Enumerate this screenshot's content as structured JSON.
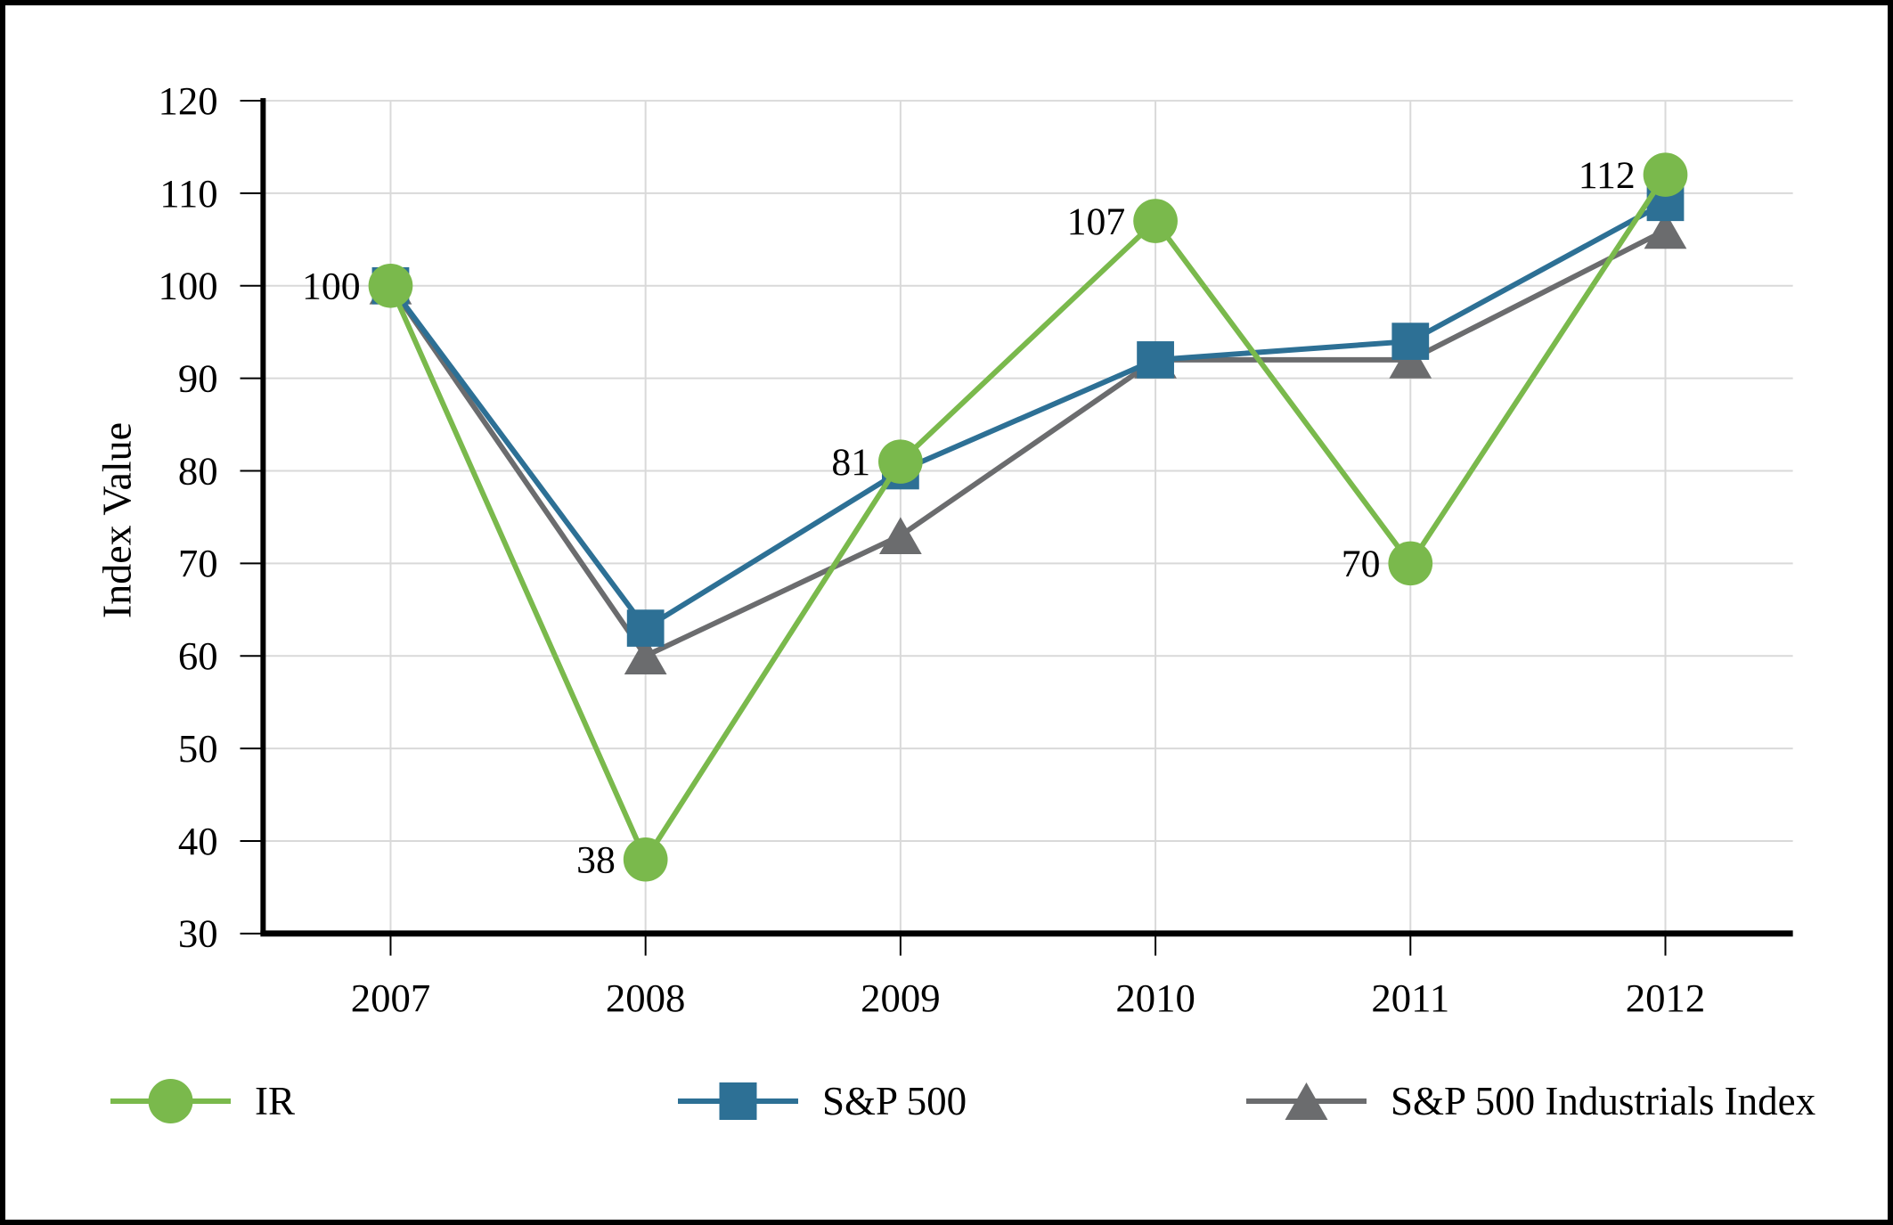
{
  "chart_data": {
    "type": "line",
    "title": "",
    "xlabel": "",
    "ylabel": "Index Value",
    "categories": [
      "2007",
      "2008",
      "2009",
      "2010",
      "2011",
      "2012"
    ],
    "yticks": [
      30,
      40,
      50,
      60,
      70,
      80,
      90,
      100,
      110,
      120
    ],
    "ylim": [
      30,
      120
    ],
    "grid": true,
    "legend_position": "bottom",
    "series": [
      {
        "name": "IR",
        "marker": "circle",
        "color": "#7ab94c",
        "values": [
          100,
          38,
          81,
          107,
          70,
          112
        ],
        "data_labels": [
          "100",
          "38",
          "81",
          "107",
          "70",
          "112"
        ]
      },
      {
        "name": "S&P 500",
        "marker": "square",
        "color": "#2d7095",
        "values": [
          100,
          63,
          80,
          92,
          94,
          109
        ],
        "data_labels": null
      },
      {
        "name": "S&P 500 Industrials Index",
        "marker": "triangle",
        "color": "#6b6c6e",
        "values": [
          100,
          60,
          73,
          92,
          92,
          106
        ],
        "data_labels": null
      }
    ],
    "colors": {
      "grid": "#d9d9d9",
      "axis": "#000000",
      "text": "#000000",
      "background": "#ffffff",
      "frame_border": "#000000"
    }
  }
}
